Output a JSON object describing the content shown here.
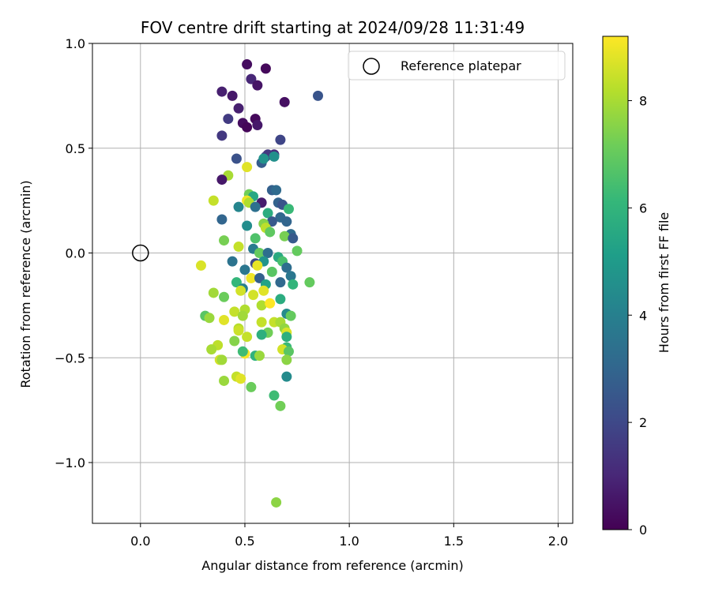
{
  "chart_data": {
    "type": "scatter",
    "title": "FOV centre drift starting at 2024/09/28 11:31:49",
    "xlabel": "Angular distance from reference (arcmin)",
    "ylabel": "Rotation from reference (arcmin)",
    "xlim": [
      -0.23,
      2.07
    ],
    "ylim": [
      -1.29,
      1.0
    ],
    "xticks": [
      0.0,
      0.5,
      1.0,
      1.5,
      2.0
    ],
    "xtick_labels": [
      "0.0",
      "0.5",
      "1.0",
      "1.5",
      "2.0"
    ],
    "yticks": [
      1.0,
      0.5,
      0.0,
      -0.5,
      -1.0
    ],
    "ytick_labels": [
      "1.0",
      "0.5",
      "0.0",
      "−0.5",
      "−1.0"
    ],
    "grid": true,
    "colormap": "viridis",
    "colorbar": {
      "label": "Hours from first FF file",
      "range": [
        0,
        9.2
      ],
      "ticks": [
        0,
        2,
        4,
        6,
        8
      ],
      "tick_labels": [
        "0",
        "2",
        "4",
        "6",
        "8"
      ]
    },
    "reference": {
      "name": "Reference platepar",
      "x": 0.0,
      "y": 0.0
    },
    "legend": {
      "position": "top-right",
      "entries": [
        "Reference platepar"
      ]
    },
    "points": [
      [
        0.51,
        0.9,
        0.3
      ],
      [
        0.6,
        0.88,
        0.2
      ],
      [
        0.53,
        0.83,
        1.0
      ],
      [
        0.56,
        0.8,
        0.5
      ],
      [
        0.39,
        0.77,
        0.8
      ],
      [
        0.44,
        0.75,
        0.6
      ],
      [
        0.85,
        0.75,
        2.4
      ],
      [
        0.69,
        0.72,
        0.4
      ],
      [
        0.47,
        0.69,
        0.8
      ],
      [
        0.42,
        0.64,
        1.6
      ],
      [
        0.55,
        0.64,
        0.2
      ],
      [
        0.49,
        0.62,
        0.3
      ],
      [
        0.51,
        0.6,
        0.1
      ],
      [
        0.56,
        0.61,
        0.6
      ],
      [
        0.39,
        0.56,
        1.5
      ],
      [
        0.67,
        0.54,
        1.9
      ],
      [
        0.46,
        0.45,
        2.3
      ],
      [
        0.64,
        0.47,
        1.2
      ],
      [
        0.58,
        0.43,
        2.7
      ],
      [
        0.6,
        0.46,
        2.0
      ],
      [
        0.61,
        0.47,
        1.5
      ],
      [
        0.59,
        0.45,
        4.7
      ],
      [
        0.64,
        0.46,
        4.6
      ],
      [
        0.51,
        0.41,
        8.8
      ],
      [
        0.42,
        0.37,
        8.0
      ],
      [
        0.39,
        0.35,
        0.6
      ],
      [
        0.63,
        0.3,
        2.8
      ],
      [
        0.65,
        0.3,
        3.2
      ],
      [
        0.52,
        0.28,
        7.2
      ],
      [
        0.54,
        0.27,
        5.5
      ],
      [
        0.35,
        0.25,
        8.4
      ],
      [
        0.51,
        0.25,
        9.0
      ],
      [
        0.52,
        0.24,
        8.1
      ],
      [
        0.58,
        0.24,
        0.7
      ],
      [
        0.66,
        0.24,
        2.9
      ],
      [
        0.68,
        0.23,
        2.4
      ],
      [
        0.47,
        0.22,
        4.2
      ],
      [
        0.55,
        0.22,
        3.4
      ],
      [
        0.71,
        0.21,
        6.2
      ],
      [
        0.61,
        0.19,
        5.7
      ],
      [
        0.67,
        0.17,
        3.1
      ],
      [
        0.39,
        0.16,
        3.0
      ],
      [
        0.63,
        0.15,
        2.6
      ],
      [
        0.59,
        0.14,
        7.5
      ],
      [
        0.7,
        0.15,
        3.0
      ],
      [
        0.51,
        0.13,
        4.5
      ],
      [
        0.6,
        0.12,
        8.3
      ],
      [
        0.62,
        0.1,
        6.9
      ],
      [
        0.72,
        0.09,
        3.2
      ],
      [
        0.55,
        0.07,
        6.6
      ],
      [
        0.69,
        0.08,
        7.3
      ],
      [
        0.73,
        0.07,
        2.6
      ],
      [
        0.4,
        0.06,
        7.3
      ],
      [
        0.47,
        0.03,
        8.4
      ],
      [
        0.54,
        0.02,
        3.8
      ],
      [
        0.57,
        0.0,
        7.0
      ],
      [
        0.75,
        0.01,
        7.0
      ],
      [
        0.61,
        0.0,
        3.3
      ],
      [
        0.66,
        -0.02,
        5.6
      ],
      [
        0.44,
        -0.04,
        3.5
      ],
      [
        0.55,
        -0.05,
        2.0
      ],
      [
        0.59,
        -0.04,
        4.8
      ],
      [
        0.68,
        -0.04,
        6.5
      ],
      [
        0.29,
        -0.06,
        8.7
      ],
      [
        0.56,
        -0.06,
        8.9
      ],
      [
        0.7,
        -0.07,
        3.3
      ],
      [
        0.5,
        -0.08,
        3.6
      ],
      [
        0.63,
        -0.09,
        6.8
      ],
      [
        0.72,
        -0.11,
        3.6
      ],
      [
        0.53,
        -0.12,
        9.0
      ],
      [
        0.57,
        -0.12,
        2.8
      ],
      [
        0.46,
        -0.14,
        6.1
      ],
      [
        0.67,
        -0.14,
        3.1
      ],
      [
        0.81,
        -0.14,
        7.0
      ],
      [
        0.6,
        -0.15,
        5.3
      ],
      [
        0.73,
        -0.15,
        6.0
      ],
      [
        0.49,
        -0.17,
        4.0
      ],
      [
        0.48,
        -0.18,
        8.6
      ],
      [
        0.35,
        -0.19,
        7.9
      ],
      [
        0.54,
        -0.2,
        8.6
      ],
      [
        0.59,
        -0.18,
        8.8
      ],
      [
        0.4,
        -0.21,
        7.1
      ],
      [
        0.67,
        -0.22,
        5.7
      ],
      [
        0.58,
        -0.25,
        8.1
      ],
      [
        0.62,
        -0.24,
        9.2
      ],
      [
        0.45,
        -0.28,
        8.4
      ],
      [
        0.5,
        -0.27,
        8.1
      ],
      [
        0.7,
        -0.29,
        4.4
      ],
      [
        0.31,
        -0.3,
        6.8
      ],
      [
        0.33,
        -0.31,
        7.8
      ],
      [
        0.49,
        -0.3,
        7.9
      ],
      [
        0.72,
        -0.3,
        7.0
      ],
      [
        0.4,
        -0.32,
        8.8
      ],
      [
        0.58,
        -0.33,
        8.4
      ],
      [
        0.64,
        -0.33,
        8.4
      ],
      [
        0.67,
        -0.33,
        8.0
      ],
      [
        0.47,
        -0.36,
        8.2
      ],
      [
        0.69,
        -0.36,
        7.7
      ],
      [
        0.47,
        -0.37,
        8.5
      ],
      [
        0.61,
        -0.38,
        7.2
      ],
      [
        0.58,
        -0.39,
        5.8
      ],
      [
        0.7,
        -0.38,
        8.7
      ],
      [
        0.51,
        -0.4,
        8.4
      ],
      [
        0.7,
        -0.4,
        5.8
      ],
      [
        0.45,
        -0.42,
        7.5
      ],
      [
        0.37,
        -0.44,
        8.3
      ],
      [
        0.34,
        -0.46,
        8.0
      ],
      [
        0.7,
        -0.45,
        6.2
      ],
      [
        0.68,
        -0.46,
        8.6
      ],
      [
        0.5,
        -0.48,
        9.1
      ],
      [
        0.49,
        -0.47,
        6.3
      ],
      [
        0.71,
        -0.47,
        6.8
      ],
      [
        0.55,
        -0.49,
        5.9
      ],
      [
        0.57,
        -0.49,
        7.8
      ],
      [
        0.38,
        -0.51,
        8.6
      ],
      [
        0.39,
        -0.51,
        7.9
      ],
      [
        0.7,
        -0.51,
        7.6
      ],
      [
        0.46,
        -0.59,
        8.4
      ],
      [
        0.48,
        -0.6,
        8.8
      ],
      [
        0.4,
        -0.61,
        7.8
      ],
      [
        0.7,
        -0.59,
        4.4
      ],
      [
        0.53,
        -0.64,
        7.1
      ],
      [
        0.64,
        -0.68,
        6.3
      ],
      [
        0.67,
        -0.73,
        7.2
      ],
      [
        0.65,
        -1.19,
        7.6
      ]
    ]
  }
}
